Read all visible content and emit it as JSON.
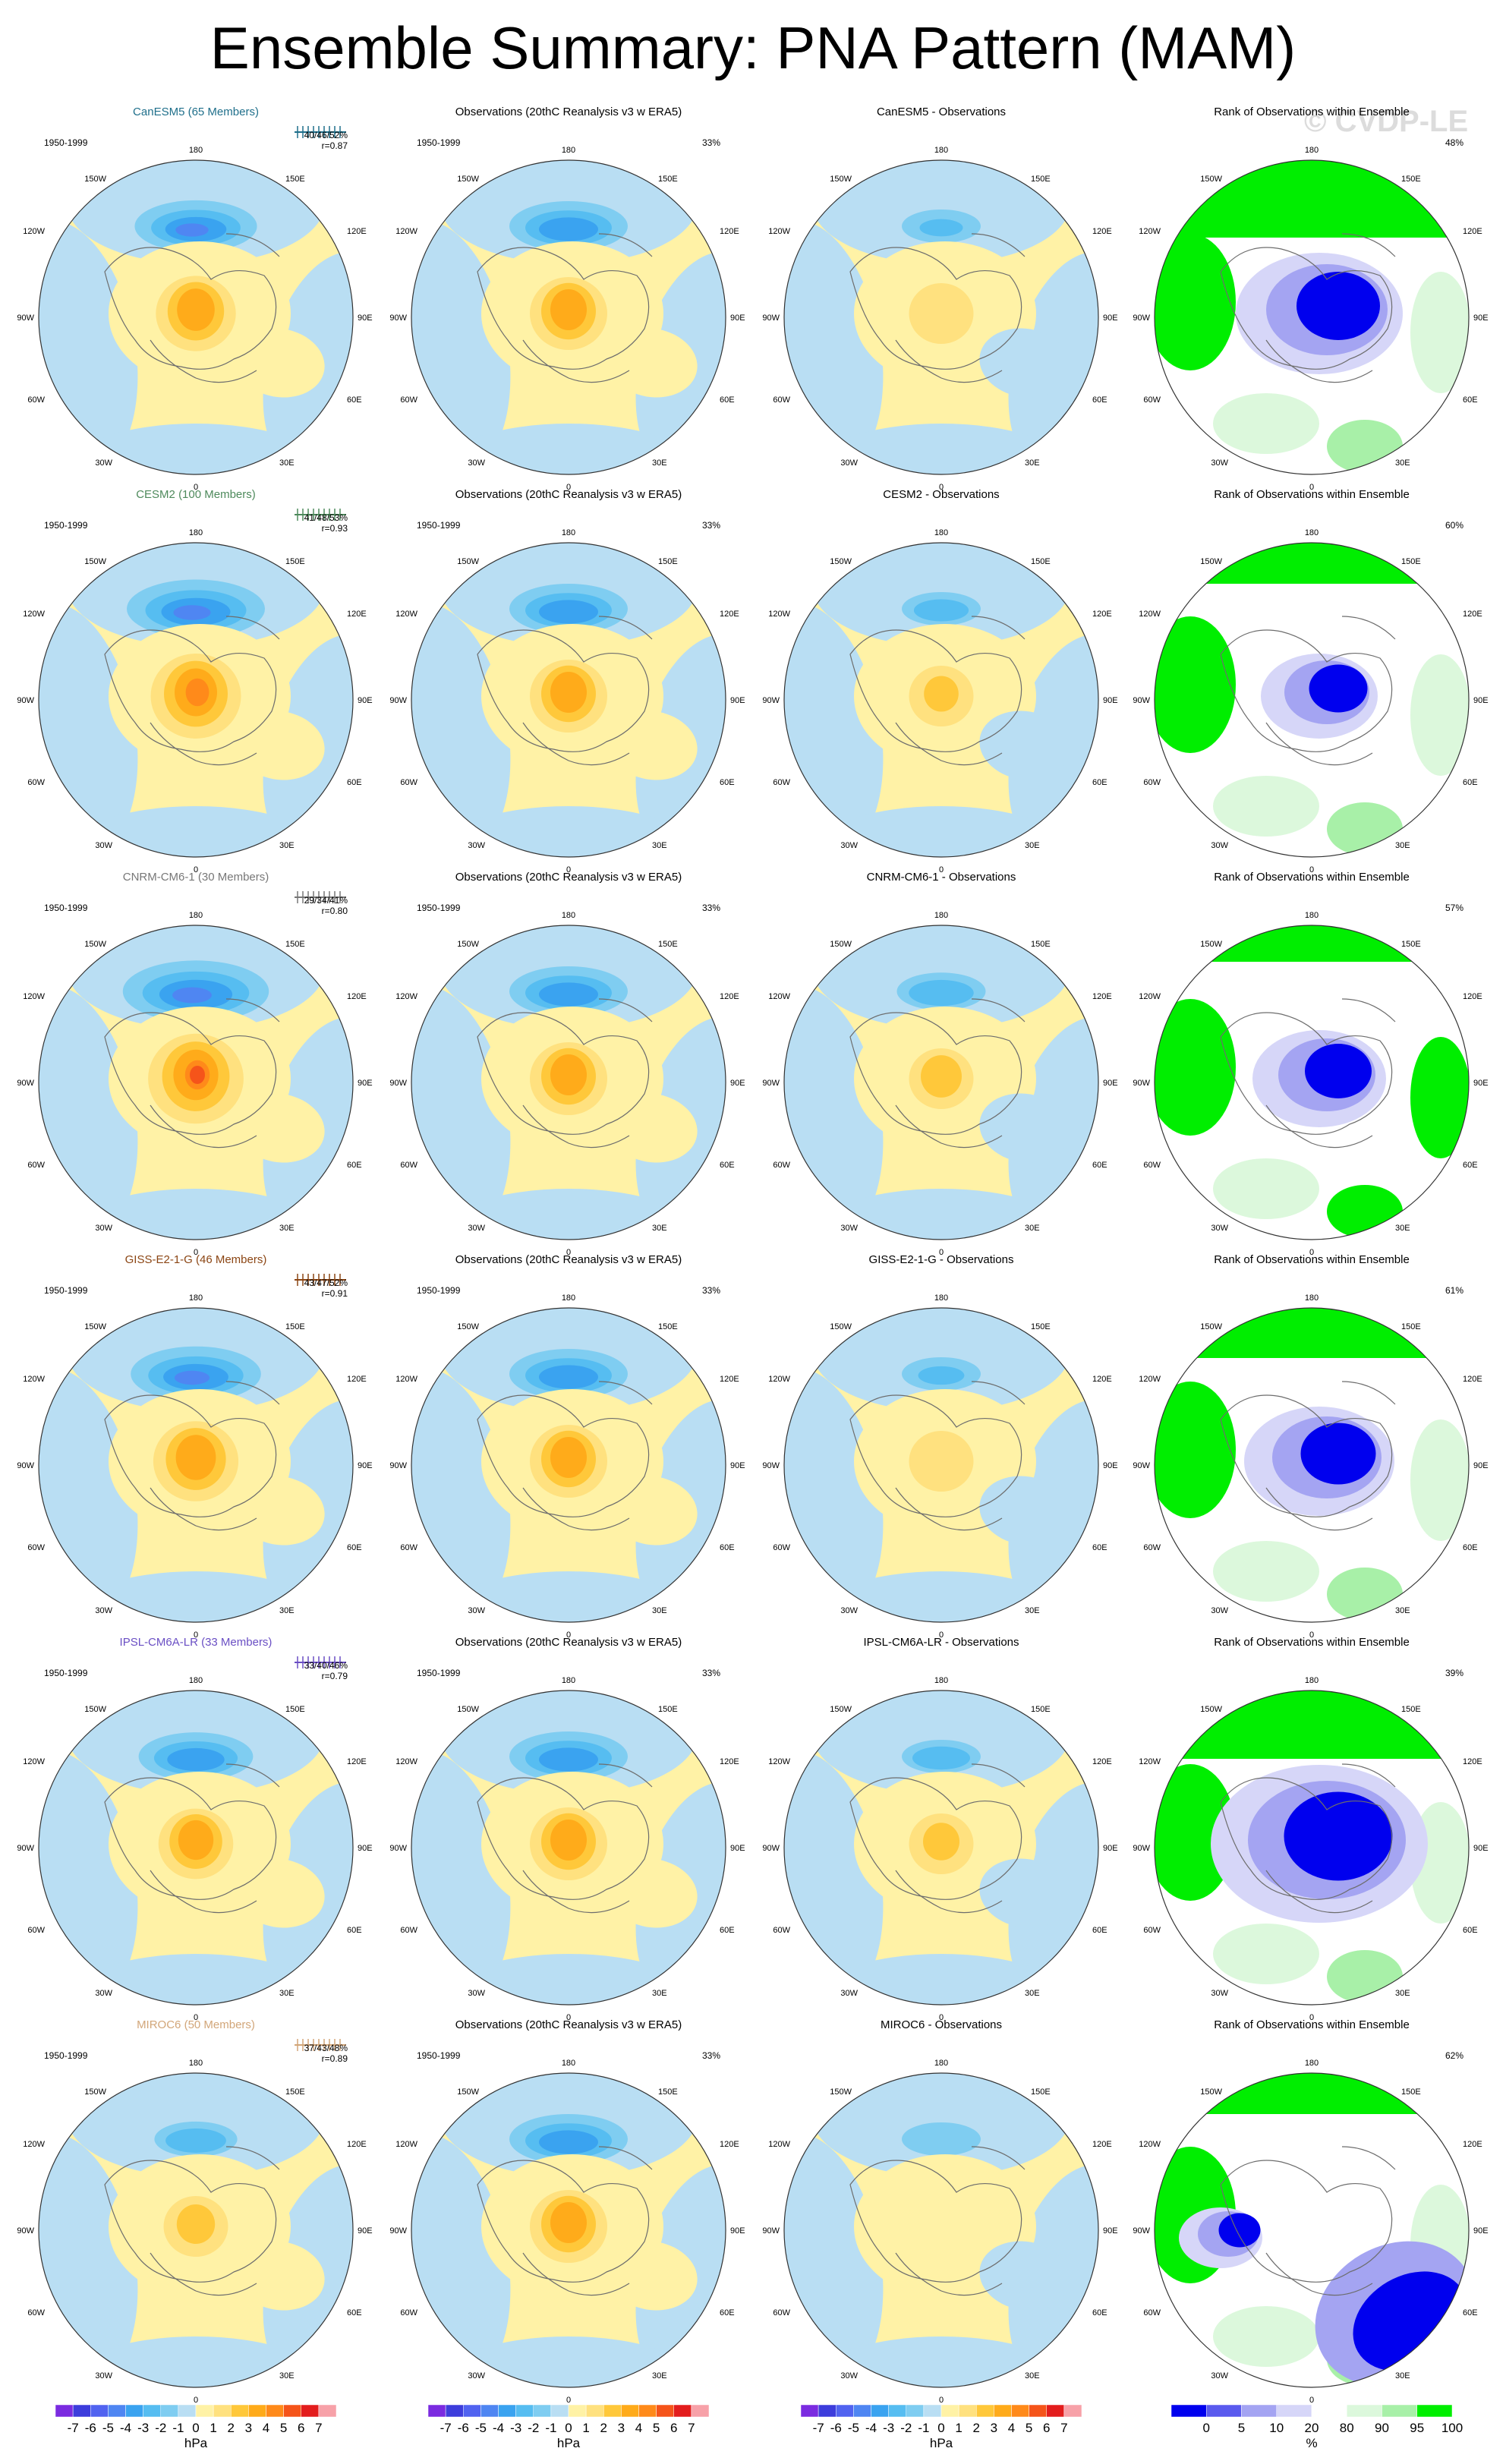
{
  "title": "Ensemble Summary: PNA Pattern (MAM)",
  "watermark": "© CVDP-LE",
  "period": "1950-1999",
  "rank_column_title": "Rank of Observations within Ensemble",
  "obs_panel_title": "Observations (20thC Reanalysis v3 w ERA5)",
  "obs_percent": "33%",
  "longitude_labels": {
    "top": "180",
    "bottom": "0",
    "left": "90W",
    "right": "90E",
    "ul1": "150W",
    "ul2": "120W",
    "ur1": "150E",
    "ur2": "120E",
    "ll1": "60W",
    "ll2": "30W",
    "lr1": "60E",
    "lr2": "30E"
  },
  "models": [
    {
      "name": "CanESM5",
      "members": "65 Members",
      "label": "CanESM5 (65 Members)",
      "color": "#1f6f8b",
      "stats": "40/46/52%",
      "corr": "r=0.87",
      "diff_title": "CanESM5 - Observations",
      "rank_pct": "48%",
      "model_strength": 0.62,
      "diff_strength": 0.3,
      "rank_variant": 0
    },
    {
      "name": "CESM2",
      "members": "100 Members",
      "label": "CESM2 (100 Members)",
      "color": "#4e8a5c",
      "stats": "41/48/53%",
      "corr": "r=0.93",
      "diff_title": "CESM2 - Observations",
      "rank_pct": "60%",
      "model_strength": 0.7,
      "diff_strength": 0.38,
      "rank_variant": 1
    },
    {
      "name": "CNRM-CM6-1",
      "members": "30 Members",
      "label": "CNRM-CM6-1 (30 Members)",
      "color": "#777777",
      "stats": "29/34/41%",
      "corr": "r=0.80",
      "diff_title": "CNRM-CM6-1 - Observations",
      "rank_pct": "57%",
      "model_strength": 0.74,
      "diff_strength": 0.45,
      "rank_variant": 2
    },
    {
      "name": "GISS-E2-1-G",
      "members": "46 Members",
      "label": "GISS-E2-1-G (46 Members)",
      "color": "#8b4513",
      "stats": "43/47/52%",
      "corr": "r=0.91",
      "diff_title": "GISS-E2-1-G - Observations",
      "rank_pct": "61%",
      "model_strength": 0.66,
      "diff_strength": 0.32,
      "rank_variant": 3
    },
    {
      "name": "IPSL-CM6A-LR",
      "members": "33 Members",
      "label": "IPSL-CM6A-LR (33 Members)",
      "color": "#6a4fc4",
      "stats": "33/40/46%",
      "corr": "r=0.79",
      "diff_title": "IPSL-CM6A-LR - Observations",
      "rank_pct": "39%",
      "model_strength": 0.58,
      "diff_strength": 0.4,
      "rank_variant": 4
    },
    {
      "name": "MIROC6",
      "members": "50 Members",
      "label": "MIROC6 (50 Members)",
      "color": "#d2a679",
      "stats": "37/43/48%",
      "corr": "r=0.89",
      "diff_title": "MIROC6 - Observations",
      "rank_pct": "62%",
      "model_strength": 0.42,
      "diff_strength": 0.18,
      "rank_variant": 5
    }
  ],
  "colorbar_sequential": {
    "labels": [
      "-7",
      "-6",
      "-5",
      "-4",
      "-3",
      "-2",
      "-1",
      "0",
      "1",
      "2",
      "3",
      "4",
      "5",
      "6",
      "7"
    ],
    "colors": [
      "#7b2be0",
      "#3d3ddc",
      "#5163f0",
      "#4f86f2",
      "#3aa3f0",
      "#56bdf1",
      "#7fcdf1",
      "#b9def3",
      "#fff2a6",
      "#ffe17f",
      "#ffc83a",
      "#ffab1a",
      "#ff8a1a",
      "#f5541a",
      "#e31d1d",
      "#f7a1a8"
    ],
    "unit": "hPa"
  },
  "colorbar_rank": {
    "labels": [
      "0",
      "5",
      "10",
      "20",
      "80",
      "90",
      "95",
      "100"
    ],
    "colors": [
      "#0000ee",
      "#5a5aee",
      "#a4a4f2",
      "#d6d6f8",
      "#ffffff",
      "#dcf8dc",
      "#a8f0a8",
      "#00ee00"
    ],
    "unit": "%"
  }
}
